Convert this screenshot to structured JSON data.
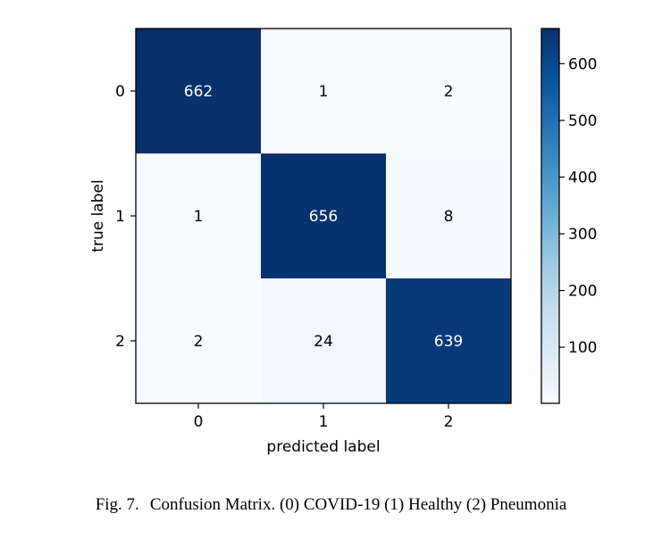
{
  "chart_data": {
    "type": "heatmap",
    "title": "",
    "xlabel": "predicted label",
    "ylabel": "true label",
    "x_categories": [
      "0",
      "1",
      "2"
    ],
    "y_categories": [
      "0",
      "1",
      "2"
    ],
    "matrix": [
      [
        662,
        1,
        2
      ],
      [
        1,
        656,
        8
      ],
      [
        2,
        24,
        639
      ]
    ],
    "colorbar": {
      "colormap": "Blues",
      "min": 1,
      "max": 662,
      "ticks": [
        100,
        200,
        300,
        400,
        500,
        600
      ]
    }
  },
  "caption": {
    "label": "Fig. 7.",
    "text": "Confusion Matrix. (0) COVID-19 (1) Healthy (2) Pneumonia"
  }
}
